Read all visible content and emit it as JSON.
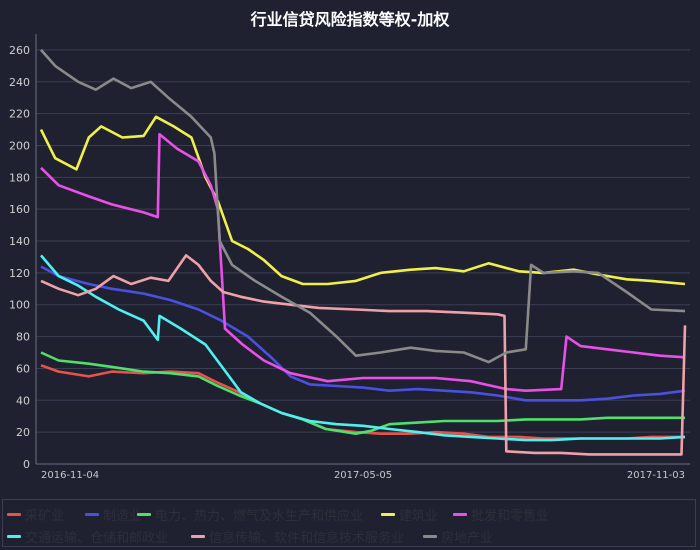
{
  "chart_data": {
    "type": "line",
    "title": "行业信贷风险指数等权-加权",
    "ylim": [
      0,
      270
    ],
    "yticks": [
      0,
      20,
      40,
      60,
      80,
      100,
      120,
      140,
      160,
      180,
      200,
      220,
      240,
      260
    ],
    "x_tick_labels": [
      "2016-11-04",
      "2017-05-05",
      "2017-11-03"
    ],
    "x_range": [
      "2016-11-04",
      "2017-11-03"
    ],
    "grid": true,
    "legend_position": "bottom",
    "series": [
      {
        "name": "采矿业",
        "color": "#e8524a",
        "points": [
          [
            "2016-11-04",
            62
          ],
          [
            "2016-11-14",
            58
          ],
          [
            "2016-12-01",
            55
          ],
          [
            "2016-12-14",
            58
          ],
          [
            "2017-01-01",
            57
          ],
          [
            "2017-01-16",
            58
          ],
          [
            "2017-02-01",
            57
          ],
          [
            "2017-02-10",
            52
          ],
          [
            "2017-02-24",
            45
          ],
          [
            "2017-03-08",
            38
          ],
          [
            "2017-03-20",
            32
          ],
          [
            "2017-04-01",
            28
          ],
          [
            "2017-04-14",
            22
          ],
          [
            "2017-05-01",
            20
          ],
          [
            "2017-05-15",
            19
          ],
          [
            "2017-06-01",
            19
          ],
          [
            "2017-06-15",
            20
          ],
          [
            "2017-07-01",
            19
          ],
          [
            "2017-07-15",
            17
          ],
          [
            "2017-08-01",
            17
          ],
          [
            "2017-08-15",
            16
          ],
          [
            "2017-09-01",
            16
          ],
          [
            "2017-09-15",
            16
          ],
          [
            "2017-10-01",
            16
          ],
          [
            "2017-10-15",
            17
          ],
          [
            "2017-11-03",
            17
          ]
        ]
      },
      {
        "name": "制造业",
        "color": "#4a50e0",
        "points": [
          [
            "2016-11-04",
            124
          ],
          [
            "2016-11-14",
            118
          ],
          [
            "2016-12-01",
            113
          ],
          [
            "2016-12-14",
            110
          ],
          [
            "2017-01-01",
            107
          ],
          [
            "2017-01-16",
            103
          ],
          [
            "2017-02-01",
            97
          ],
          [
            "2017-02-14",
            90
          ],
          [
            "2017-03-01",
            80
          ],
          [
            "2017-03-15",
            66
          ],
          [
            "2017-03-25",
            55
          ],
          [
            "2017-04-05",
            50
          ],
          [
            "2017-04-20",
            49
          ],
          [
            "2017-05-05",
            48
          ],
          [
            "2017-05-20",
            46
          ],
          [
            "2017-06-05",
            47
          ],
          [
            "2017-06-20",
            46
          ],
          [
            "2017-07-05",
            45
          ],
          [
            "2017-07-20",
            43
          ],
          [
            "2017-08-05",
            40
          ],
          [
            "2017-08-20",
            40
          ],
          [
            "2017-09-05",
            40
          ],
          [
            "2017-09-20",
            41
          ],
          [
            "2017-10-05",
            43
          ],
          [
            "2017-10-20",
            44
          ],
          [
            "2017-11-03",
            46
          ]
        ]
      },
      {
        "name": "电力、热力、燃气及水生产和供应业",
        "color": "#4ee06a",
        "points": [
          [
            "2016-11-04",
            70
          ],
          [
            "2016-11-14",
            65
          ],
          [
            "2016-12-01",
            63
          ],
          [
            "2016-12-14",
            61
          ],
          [
            "2017-01-01",
            58
          ],
          [
            "2017-01-16",
            57
          ],
          [
            "2017-02-01",
            55
          ],
          [
            "2017-02-10",
            50
          ],
          [
            "2017-02-24",
            43
          ],
          [
            "2017-03-08",
            38
          ],
          [
            "2017-03-20",
            32
          ],
          [
            "2017-04-01",
            28
          ],
          [
            "2017-04-14",
            22
          ],
          [
            "2017-05-01",
            19
          ],
          [
            "2017-05-10",
            21
          ],
          [
            "2017-05-20",
            25
          ],
          [
            "2017-06-05",
            26
          ],
          [
            "2017-06-20",
            27
          ],
          [
            "2017-07-05",
            27
          ],
          [
            "2017-07-20",
            27
          ],
          [
            "2017-08-05",
            28
          ],
          [
            "2017-08-20",
            28
          ],
          [
            "2017-09-05",
            28
          ],
          [
            "2017-09-20",
            29
          ],
          [
            "2017-10-05",
            29
          ],
          [
            "2017-10-20",
            29
          ],
          [
            "2017-11-03",
            29
          ]
        ]
      },
      {
        "name": "建筑业",
        "color": "#f0f04a",
        "points": [
          [
            "2016-11-04",
            210
          ],
          [
            "2016-11-12",
            192
          ],
          [
            "2016-11-24",
            185
          ],
          [
            "2016-12-01",
            205
          ],
          [
            "2016-12-08",
            212
          ],
          [
            "2016-12-20",
            205
          ],
          [
            "2017-01-01",
            206
          ],
          [
            "2017-01-08",
            218
          ],
          [
            "2017-01-18",
            212
          ],
          [
            "2017-01-28",
            205
          ],
          [
            "2017-02-05",
            180
          ],
          [
            "2017-02-12",
            165
          ],
          [
            "2017-02-20",
            140
          ],
          [
            "2017-03-01",
            135
          ],
          [
            "2017-03-10",
            128
          ],
          [
            "2017-03-20",
            118
          ],
          [
            "2017-04-01",
            113
          ],
          [
            "2017-04-15",
            113
          ],
          [
            "2017-05-01",
            115
          ],
          [
            "2017-05-15",
            120
          ],
          [
            "2017-06-01",
            122
          ],
          [
            "2017-06-15",
            123
          ],
          [
            "2017-07-01",
            121
          ],
          [
            "2017-07-15",
            126
          ],
          [
            "2017-08-01",
            121
          ],
          [
            "2017-08-15",
            120
          ],
          [
            "2017-09-01",
            122
          ],
          [
            "2017-09-15",
            119
          ],
          [
            "2017-10-01",
            116
          ],
          [
            "2017-10-15",
            115
          ],
          [
            "2017-11-03",
            113
          ]
        ]
      },
      {
        "name": "批发和零售业",
        "color": "#e850e8",
        "points": [
          [
            "2016-11-04",
            186
          ],
          [
            "2016-11-14",
            175
          ],
          [
            "2016-12-01",
            168
          ],
          [
            "2016-12-14",
            163
          ],
          [
            "2017-01-01",
            158
          ],
          [
            "2017-01-09",
            155
          ],
          [
            "2017-01-10",
            207
          ],
          [
            "2017-01-20",
            198
          ],
          [
            "2017-02-01",
            190
          ],
          [
            "2017-02-08",
            175
          ],
          [
            "2017-02-12",
            160
          ],
          [
            "2017-02-16",
            85
          ],
          [
            "2017-02-26",
            75
          ],
          [
            "2017-03-10",
            65
          ],
          [
            "2017-03-25",
            57
          ],
          [
            "2017-04-15",
            52
          ],
          [
            "2017-05-05",
            54
          ],
          [
            "2017-05-25",
            54
          ],
          [
            "2017-06-15",
            54
          ],
          [
            "2017-07-05",
            52
          ],
          [
            "2017-07-25",
            47
          ],
          [
            "2017-08-05",
            46
          ],
          [
            "2017-08-25",
            47
          ],
          [
            "2017-08-28",
            80
          ],
          [
            "2017-09-05",
            74
          ],
          [
            "2017-09-20",
            72
          ],
          [
            "2017-10-05",
            70
          ],
          [
            "2017-10-20",
            68
          ],
          [
            "2017-11-03",
            67
          ]
        ]
      },
      {
        "name": "交通运输、仓储和邮政业",
        "color": "#4ef0f0",
        "points": [
          [
            "2016-11-04",
            131
          ],
          [
            "2016-11-14",
            118
          ],
          [
            "2016-11-25",
            112
          ],
          [
            "2016-12-05",
            105
          ],
          [
            "2016-12-18",
            97
          ],
          [
            "2017-01-01",
            90
          ],
          [
            "2017-01-09",
            78
          ],
          [
            "2017-01-10",
            93
          ],
          [
            "2017-01-22",
            85
          ],
          [
            "2017-02-05",
            75
          ],
          [
            "2017-02-15",
            60
          ],
          [
            "2017-02-25",
            45
          ],
          [
            "2017-03-08",
            38
          ],
          [
            "2017-03-20",
            32
          ],
          [
            "2017-04-05",
            27
          ],
          [
            "2017-04-20",
            25
          ],
          [
            "2017-05-05",
            24
          ],
          [
            "2017-05-20",
            22
          ],
          [
            "2017-06-05",
            20
          ],
          [
            "2017-06-20",
            18
          ],
          [
            "2017-07-05",
            17
          ],
          [
            "2017-07-20",
            16
          ],
          [
            "2017-08-05",
            15
          ],
          [
            "2017-08-20",
            15
          ],
          [
            "2017-09-05",
            16
          ],
          [
            "2017-09-20",
            16
          ],
          [
            "2017-10-05",
            16
          ],
          [
            "2017-10-20",
            16
          ],
          [
            "2017-11-03",
            17
          ]
        ]
      },
      {
        "name": "信息传输、软件和信息技术服务业",
        "color": "#f0a0a8",
        "points": [
          [
            "2016-11-04",
            115
          ],
          [
            "2016-11-14",
            110
          ],
          [
            "2016-11-25",
            106
          ],
          [
            "2016-12-05",
            110
          ],
          [
            "2016-12-15",
            118
          ],
          [
            "2016-12-25",
            113
          ],
          [
            "2017-01-05",
            117
          ],
          [
            "2017-01-15",
            115
          ],
          [
            "2017-01-25",
            131
          ],
          [
            "2017-02-01",
            125
          ],
          [
            "2017-02-08",
            115
          ],
          [
            "2017-02-15",
            108
          ],
          [
            "2017-02-25",
            105
          ],
          [
            "2017-03-10",
            102
          ],
          [
            "2017-03-25",
            100
          ],
          [
            "2017-04-10",
            98
          ],
          [
            "2017-05-01",
            97
          ],
          [
            "2017-05-20",
            96
          ],
          [
            "2017-06-10",
            96
          ],
          [
            "2017-07-01",
            95
          ],
          [
            "2017-07-20",
            94
          ],
          [
            "2017-07-24",
            93
          ],
          [
            "2017-07-25",
            8
          ],
          [
            "2017-08-10",
            7
          ],
          [
            "2017-08-25",
            7
          ],
          [
            "2017-09-10",
            6
          ],
          [
            "2017-09-25",
            6
          ],
          [
            "2017-10-10",
            6
          ],
          [
            "2017-10-25",
            6
          ],
          [
            "2017-11-01",
            6
          ],
          [
            "2017-11-03",
            87
          ]
        ]
      },
      {
        "name": "房地产业",
        "color": "#8a8a8a",
        "points": [
          [
            "2016-11-04",
            260
          ],
          [
            "2016-11-12",
            250
          ],
          [
            "2016-11-25",
            240
          ],
          [
            "2016-12-05",
            235
          ],
          [
            "2016-12-15",
            242
          ],
          [
            "2016-12-25",
            236
          ],
          [
            "2017-01-05",
            240
          ],
          [
            "2017-01-15",
            230
          ],
          [
            "2017-01-28",
            218
          ],
          [
            "2017-02-08",
            205
          ],
          [
            "2017-02-10",
            195
          ],
          [
            "2017-02-13",
            140
          ],
          [
            "2017-02-20",
            125
          ],
          [
            "2017-03-05",
            115
          ],
          [
            "2017-03-20",
            105
          ],
          [
            "2017-04-05",
            95
          ],
          [
            "2017-04-20",
            80
          ],
          [
            "2017-05-01",
            68
          ],
          [
            "2017-05-15",
            70
          ],
          [
            "2017-06-01",
            73
          ],
          [
            "2017-06-15",
            71
          ],
          [
            "2017-07-01",
            70
          ],
          [
            "2017-07-15",
            64
          ],
          [
            "2017-07-25",
            70
          ],
          [
            "2017-08-05",
            72
          ],
          [
            "2017-08-08",
            125
          ],
          [
            "2017-08-15",
            120
          ],
          [
            "2017-09-01",
            121
          ],
          [
            "2017-09-15",
            120
          ],
          [
            "2017-10-01",
            108
          ],
          [
            "2017-10-15",
            97
          ],
          [
            "2017-11-03",
            96
          ]
        ]
      }
    ]
  }
}
